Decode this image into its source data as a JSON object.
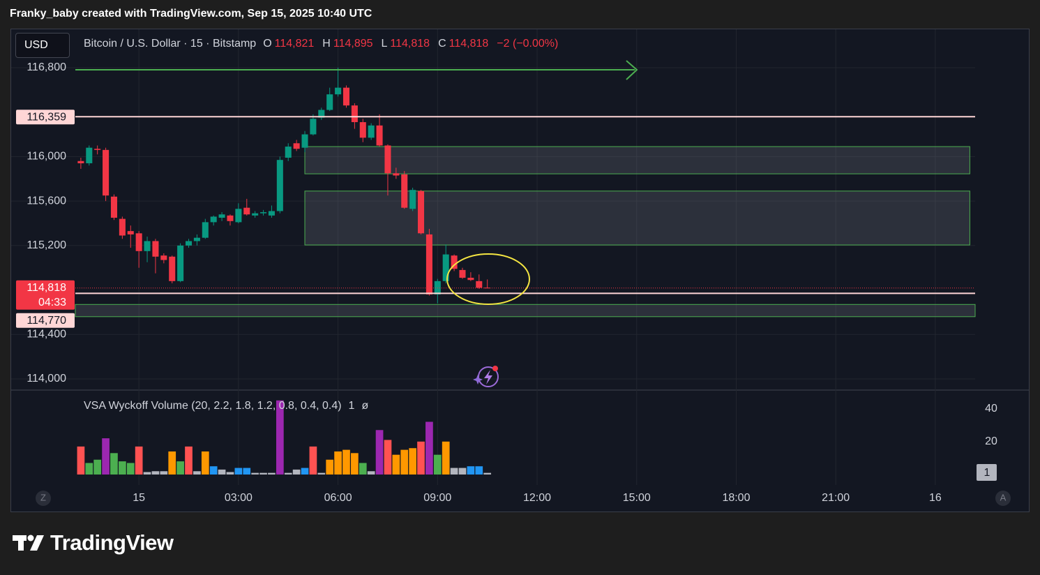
{
  "header": "Franky_baby created with TradingView.com, Sep 15, 2025 10:40 UTC",
  "currency": "USD",
  "legend": {
    "symbol": "Bitcoin / U.S. Dollar · 15 · Bitstamp",
    "open": {
      "key": "O",
      "value": "114,821"
    },
    "high": {
      "key": "H",
      "value": "114,895"
    },
    "low": {
      "key": "L",
      "value": "114,818"
    },
    "close": {
      "key": "C",
      "value": "114,818"
    },
    "change": "−2 (−0.00%)"
  },
  "scale_buttons": [
    "Z",
    "A"
  ],
  "brand": "TradingView",
  "chart_data": [
    {
      "type": "candlestick",
      "x": [
        -1.75,
        -1.5,
        -1.25,
        -1,
        -0.75,
        -0.5,
        -0.25,
        0,
        0.25,
        0.5,
        0.75,
        1,
        1.25,
        1.5,
        1.75,
        2,
        2.25,
        2.5,
        2.75,
        3,
        3.25,
        3.5,
        3.75,
        4,
        4.25,
        4.5,
        4.75,
        5,
        5.25,
        5.5,
        5.75,
        6,
        6.25,
        6.5,
        6.75,
        7,
        7.25,
        7.5,
        7.75,
        8,
        8.25,
        8.5,
        8.75,
        9,
        9.25,
        9.5,
        9.75,
        10,
        10.25,
        10.5
      ],
      "open": [
        115960,
        115940,
        116070,
        116060,
        115640,
        115440,
        115330,
        115310,
        115150,
        115240,
        115110,
        115100,
        114880,
        115200,
        115240,
        115270,
        115410,
        115450,
        115470,
        115410,
        115540,
        115470,
        115490,
        115470,
        115510,
        115990,
        116120,
        116080,
        116200,
        116350,
        116420,
        116560,
        116620,
        116460,
        116310,
        116170,
        116280,
        116100,
        115850,
        115840,
        115530,
        115690,
        115300,
        114760,
        114880,
        115110,
        114980,
        114910,
        114880,
        114821
      ],
      "high": [
        115990,
        116100,
        116100,
        116080,
        115660,
        115460,
        115380,
        115330,
        115280,
        115260,
        115130,
        115110,
        115220,
        115260,
        115300,
        115440,
        115470,
        115500,
        115480,
        115580,
        115620,
        115510,
        115520,
        115560,
        116000,
        116120,
        116150,
        116230,
        116380,
        116440,
        116620,
        116800,
        116640,
        116480,
        116340,
        116300,
        116380,
        116110,
        115900,
        115870,
        115720,
        115700,
        115350,
        114900,
        115210,
        115120,
        115000,
        114960,
        114940,
        114895
      ],
      "low": [
        115890,
        115920,
        116020,
        115600,
        115430,
        115260,
        115180,
        115000,
        115050,
        114950,
        115040,
        114860,
        114870,
        115180,
        115200,
        115260,
        115380,
        115420,
        115380,
        115400,
        115470,
        115450,
        115470,
        115450,
        115490,
        115960,
        116050,
        116040,
        116190,
        116330,
        116410,
        116540,
        116440,
        116250,
        116130,
        116150,
        116090,
        115650,
        115800,
        115530,
        115510,
        115300,
        114750,
        114680,
        114860,
        114970,
        114900,
        114880,
        114810,
        114818
      ],
      "close": [
        115940,
        116080,
        116060,
        115650,
        115450,
        115290,
        115300,
        115150,
        115240,
        115100,
        115070,
        114880,
        115200,
        115240,
        115270,
        115410,
        115460,
        115480,
        115420,
        115530,
        115480,
        115490,
        115500,
        115510,
        115970,
        116090,
        116070,
        116200,
        116340,
        116420,
        116560,
        116620,
        116460,
        116310,
        116170,
        116280,
        116100,
        115850,
        115830,
        115540,
        115700,
        115310,
        114760,
        114880,
        115120,
        114990,
        114910,
        114890,
        114820,
        114818
      ],
      "up_color": "#089981",
      "down_color": "#f23645",
      "xlim": [
        -3.85,
        25.2
      ],
      "xticks": [
        {
          "value": 0,
          "label": "15"
        },
        {
          "value": 3,
          "label": "03:00"
        },
        {
          "value": 6,
          "label": "06:00"
        },
        {
          "value": 9,
          "label": "09:00"
        },
        {
          "value": 12,
          "label": "12:00"
        },
        {
          "value": 15,
          "label": "15:00"
        },
        {
          "value": 18,
          "label": "18:00"
        },
        {
          "value": 21,
          "label": "21:00"
        },
        {
          "value": 24,
          "label": "16"
        }
      ],
      "ylim": [
        113906,
        117145
      ],
      "yticks": [
        {
          "value": 114000,
          "label": "114,000"
        },
        {
          "value": 114400,
          "label": "114,400"
        },
        {
          "value": 115200,
          "label": "115,200"
        },
        {
          "value": 115600,
          "label": "115,600"
        },
        {
          "value": 116000,
          "label": "116,000"
        },
        {
          "value": 116800,
          "label": "116,800"
        }
      ],
      "grid": true,
      "levels": [
        {
          "value": 116359,
          "label": "116,359"
        },
        {
          "value": 114770,
          "label": "114,770"
        }
      ],
      "last_price": {
        "value": 114818,
        "label": "114,818",
        "countdown": "04:33"
      },
      "zones": [
        {
          "top": 116090,
          "bottom": 115845
        },
        {
          "top": 115690,
          "bottom": 115205
        },
        {
          "top": 114670,
          "bottom": 114560
        }
      ]
    },
    {
      "type": "bar",
      "title": "VSA Wyckoff Volume (20, 2.2, 1.8, 1.2, 0.8, 0.4, 0.4)",
      "flags": [
        "1",
        "ø"
      ],
      "values": [
        17,
        7,
        9,
        22,
        13,
        8,
        7,
        17,
        1.5,
        2,
        2,
        14,
        8,
        17,
        2,
        14,
        5,
        3,
        1.5,
        4,
        4,
        1,
        1,
        1,
        45,
        1,
        3,
        4,
        17,
        1,
        9,
        14,
        15,
        13,
        7,
        2,
        27,
        21,
        12,
        15,
        16,
        20,
        32,
        12,
        20,
        4,
        4,
        5,
        5,
        1
      ],
      "colors": [
        "#ff5252",
        "#4caf50",
        "#4caf50",
        "#9c27b0",
        "#4caf50",
        "#4caf50",
        "#4caf50",
        "#ff5252",
        "#b2b5be",
        "#b2b5be",
        "#b2b5be",
        "#ff9800",
        "#4caf50",
        "#ff5252",
        "#b2b5be",
        "#ff9800",
        "#2196f3",
        "#b2b5be",
        "#b2b5be",
        "#2196f3",
        "#2196f3",
        "#b2b5be",
        "#b2b5be",
        "#b2b5be",
        "#9c27b0",
        "#b2b5be",
        "#b2b5be",
        "#2196f3",
        "#ff5252",
        "#b2b5be",
        "#ff9800",
        "#ff9800",
        "#ff9800",
        "#ff9800",
        "#4caf50",
        "#b2b5be",
        "#9c27b0",
        "#ff5252",
        "#ff9800",
        "#ff9800",
        "#ff9800",
        "#ff5252",
        "#9c27b0",
        "#4caf50",
        "#ff9800",
        "#b2b5be",
        "#b2b5be",
        "#2196f3",
        "#2196f3",
        "#b2b5be"
      ],
      "ylim": [
        0,
        50
      ],
      "yticks": [
        20,
        40
      ]
    }
  ]
}
